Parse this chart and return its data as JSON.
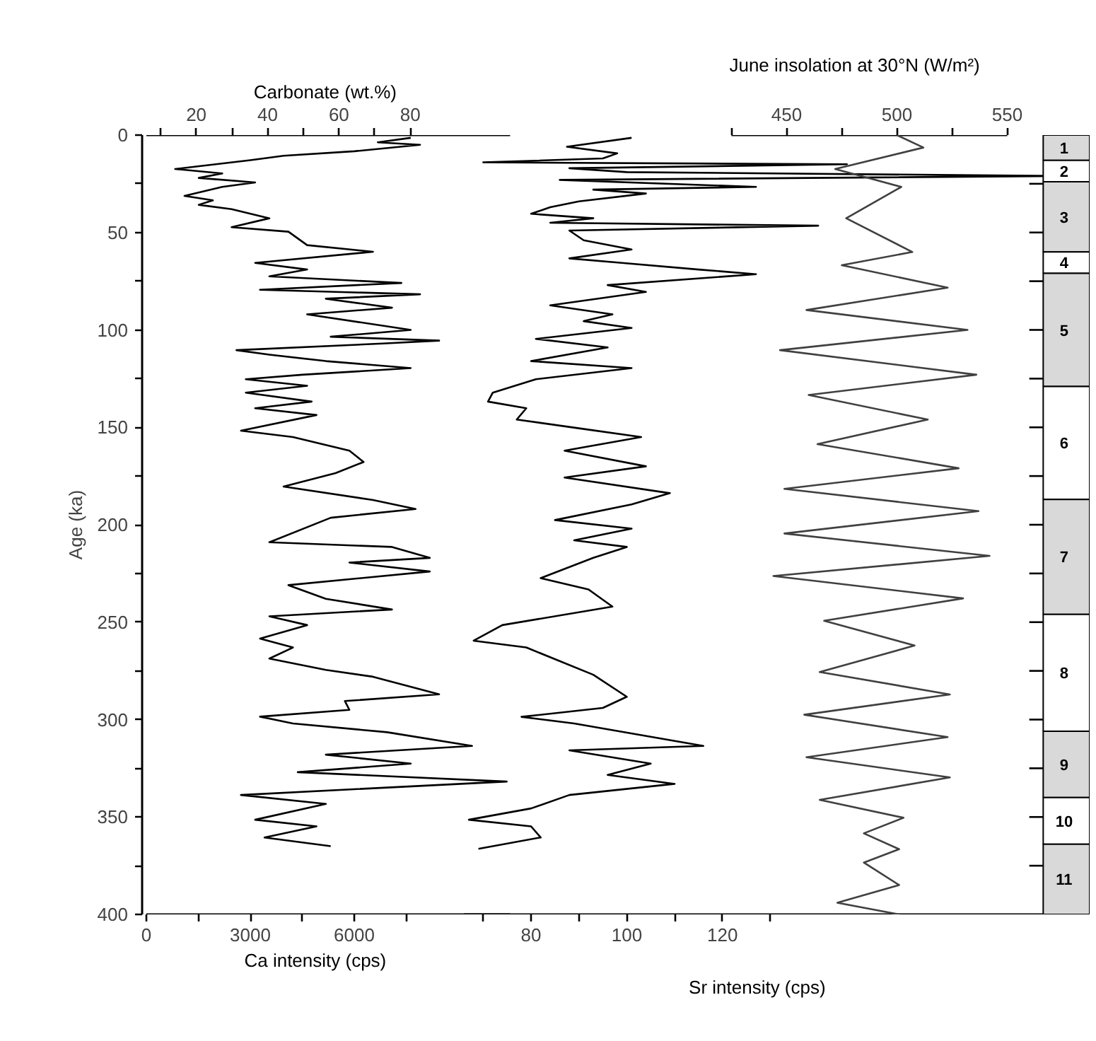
{
  "chart_data": [
    {
      "type": "line",
      "orientation": "horizontal",
      "xlabel": "Ca intensity (cps)",
      "x2label": "Carbonate (wt.%)",
      "ylabel": "Age (ka)",
      "xlim": [
        0,
        10500
      ],
      "xticks": [
        0,
        {
          "value": 1500,
          "label": null
        },
        3000,
        {
          "value": 4500,
          "label": null
        },
        6000,
        {
          "value": 7500,
          "label": null
        }
      ],
      "x2lim": [
        6,
        108
      ],
      "x2ticks": [
        {
          "value": 10,
          "label": null
        },
        20,
        {
          "value": 30,
          "label": null
        },
        40,
        {
          "value": 50,
          "label": null
        },
        60,
        {
          "value": 70,
          "label": null
        },
        80
      ],
      "ylim": [
        400,
        0
      ],
      "yticks": [
        0,
        {
          "value": 25,
          "label": null
        },
        50,
        {
          "value": 75,
          "label": null
        },
        100,
        {
          "value": 125,
          "label": null
        },
        150,
        {
          "value": 175,
          "label": null
        },
        200,
        {
          "value": 225,
          "label": null
        },
        250,
        {
          "value": 275,
          "label": null
        },
        300,
        {
          "value": 325,
          "label": null
        },
        350,
        {
          "value": 375,
          "label": null
        },
        400
      ],
      "series": [
        {
          "color": "#000000",
          "x": [
            1.4,
            3.7,
            5,
            8.3,
            10.6,
            12.9,
            17.4,
            19.7,
            22,
            24.3,
            26.6,
            31.2,
            33.5,
            35.8,
            38,
            42.7,
            47.3,
            49.6,
            56.5,
            59.9,
            65.6,
            69,
            72.5,
            75.9,
            79.4,
            81.7,
            84,
            88.6,
            92,
            100,
            103.5,
            105.5,
            107,
            110.4,
            112.7,
            116,
            119.6,
            123,
            125.3,
            128.7,
            132.2,
            136.8,
            140.2,
            143.7,
            151.7,
            155,
            162,
            167.8,
            173.5,
            180.4,
            187.3,
            191.9,
            196.4,
            209,
            211.4,
            217,
            219.4,
            224,
            231,
            238,
            243.5,
            247,
            251.5,
            258.4,
            263,
            268.7,
            274.5,
            278,
            287,
            290.5,
            295,
            298.5,
            302,
            306.5,
            313.5,
            318,
            322.6,
            327,
            331.8,
            338.7,
            343.3,
            351.4,
            354.8,
            360.5,
            365
          ],
          "values": [
            7630,
            6680,
            7900,
            6000,
            3960,
            3000,
            830,
            2190,
            1510,
            3140,
            2190,
            1100,
            1920,
            1510,
            2460,
            3550,
            2460,
            4100,
            4640,
            6540,
            3140,
            4640,
            3550,
            7360,
            3280,
            7900,
            5180,
            7090,
            4640,
            7630,
            5320,
            8450,
            6820,
            2600,
            3550,
            5180,
            7630,
            4500,
            2870,
            4640,
            2870,
            4770,
            3140,
            4910,
            2730,
            4230,
            5860,
            6270,
            5460,
            3960,
            6540,
            7770,
            5320,
            3550,
            7090,
            8180,
            5860,
            8180,
            4100,
            5180,
            7090,
            3550,
            4640,
            3280,
            4230,
            3550,
            5180,
            6540,
            8450,
            5730,
            5860,
            3280,
            4230,
            6950,
            9400,
            5180,
            7630,
            4370,
            10400,
            2730,
            5180,
            3140,
            4910,
            3410,
            5320
          ]
        }
      ]
    },
    {
      "type": "line",
      "orientation": "horizontal",
      "xlabel": "Sr intensity (cps)",
      "tick_labels": "x",
      "xlim": [
        66,
        195
      ],
      "xticks": [
        {
          "value": 70,
          "label": null
        },
        80,
        {
          "value": 90,
          "label": null
        },
        100,
        {
          "value": 110,
          "label": null
        },
        120,
        {
          "value": 130,
          "label": null
        }
      ],
      "ylim": [
        400,
        0
      ],
      "series": [
        {
          "color": "#000000",
          "x": [
            1.4,
            6,
            9.4,
            12,
            14,
            15,
            17,
            19,
            21,
            23,
            26.6,
            28,
            30,
            34,
            37,
            40.4,
            42.7,
            45,
            46.5,
            49,
            54,
            58.7,
            63.3,
            65.6,
            69,
            71.4,
            77,
            80.5,
            87.4,
            92,
            95.5,
            99,
            104.6,
            109,
            116,
            119.6,
            125.3,
            132.2,
            136.8,
            140.2,
            146,
            150.5,
            155,
            162,
            170,
            175.8,
            183.8,
            189.6,
            197.6,
            202,
            208,
            211.4,
            217,
            227.4,
            233.2,
            242,
            251.5,
            259.5,
            263,
            277,
            288.3,
            294,
            298.6,
            302,
            313.5,
            315.8,
            322.6,
            328.4,
            333,
            338.7,
            345.6,
            351.4,
            354.8,
            360.5,
            366.3
          ],
          "values": [
            101,
            87.5,
            98,
            95,
            70,
            146,
            88,
            100,
            190,
            86,
            127,
            93,
            104,
            90,
            84,
            80,
            93,
            84,
            140,
            88,
            91,
            101,
            88,
            99,
            115,
            127,
            96,
            104,
            84,
            97,
            91,
            101,
            81,
            96,
            80,
            101,
            81,
            72,
            71,
            79,
            77,
            90,
            103,
            87,
            104,
            87,
            109,
            101,
            85,
            101,
            89,
            100,
            93,
            82,
            92,
            97,
            74,
            68,
            79,
            93,
            100,
            95,
            78,
            89,
            116,
            88,
            105,
            96,
            110,
            88,
            80,
            67,
            80,
            82,
            69
          ]
        }
      ]
    },
    {
      "type": "line",
      "orientation": "horizontal",
      "x2label": "June insolation at 30°N (W/m²)",
      "tick_labels": "x",
      "x2lim": [
        425,
        550
      ],
      "x2ticks": [
        {
          "value": 425,
          "label": null
        },
        450,
        {
          "value": 475,
          "label": null
        },
        500,
        {
          "value": 525,
          "label": null
        },
        550
      ],
      "ylim": [
        400,
        0
      ],
      "series": [
        {
          "color": "#404040",
          "axis": "x2",
          "x": [
            0,
            6.4,
            17.4,
            26.6,
            42.7,
            60,
            66.8,
            78.3,
            89.8,
            100,
            110.4,
            123,
            133.4,
            146,
            158.6,
            171,
            181.6,
            193,
            204.5,
            216,
            226.3,
            237.8,
            249.3,
            262,
            275.6,
            287.1,
            297.5,
            309,
            319.3,
            329.7,
            341.2,
            350.4,
            358.4,
            366.5,
            373.4,
            384.9,
            394,
            400
          ],
          "values": [
            500,
            512,
            472,
            502,
            477,
            507,
            475,
            523,
            459,
            532,
            447,
            536,
            460,
            514,
            464,
            528,
            449,
            537,
            449,
            542,
            444,
            530,
            467,
            508,
            465,
            524,
            458,
            523,
            459,
            524,
            465,
            503,
            485,
            501,
            485,
            501,
            473,
            501
          ]
        }
      ]
    },
    {
      "type": "bar",
      "stacked": true,
      "legend": "top left",
      "categories": [
        null
      ],
      "tick_labels": false,
      "ylim": [
        400,
        0
      ],
      "yticks": [
        {
          "value": 25,
          "label": null
        },
        {
          "value": 50,
          "label": null
        },
        {
          "value": 75,
          "label": null
        },
        {
          "value": 100,
          "label": null
        },
        {
          "value": 125,
          "label": null
        },
        {
          "value": 150,
          "label": null
        },
        {
          "value": 175,
          "label": null
        },
        {
          "value": 200,
          "label": null
        },
        {
          "value": 225,
          "label": null
        },
        {
          "value": 250,
          "label": null
        },
        {
          "value": 275,
          "label": null
        },
        {
          "value": 300,
          "label": null
        },
        {
          "value": 325,
          "label": null
        },
        {
          "value": 350,
          "label": null
        },
        {
          "value": 375,
          "label": null
        }
      ],
      "series": [
        {
          "name": "1",
          "color": "#d9d9d9",
          "values": [
            13
          ]
        },
        {
          "name": "2",
          "color": "#ffffff",
          "values": [
            11
          ]
        },
        {
          "name": "3",
          "color": "#d9d9d9",
          "values": [
            36
          ]
        },
        {
          "name": "4",
          "color": "#ffffff",
          "values": [
            11
          ]
        },
        {
          "name": "5",
          "color": "#d9d9d9",
          "values": [
            58
          ]
        },
        {
          "name": "6",
          "color": "#ffffff",
          "values": [
            58
          ]
        },
        {
          "name": "7",
          "color": "#d9d9d9",
          "values": [
            59
          ]
        },
        {
          "name": "8",
          "color": "#ffffff",
          "values": [
            60
          ]
        },
        {
          "name": "9",
          "color": "#d9d9d9",
          "values": [
            34
          ]
        },
        {
          "name": "10",
          "color": "#ffffff",
          "values": [
            24
          ]
        },
        {
          "name": "11",
          "color": "#d9d9d9",
          "values": [
            36
          ]
        }
      ]
    }
  ]
}
